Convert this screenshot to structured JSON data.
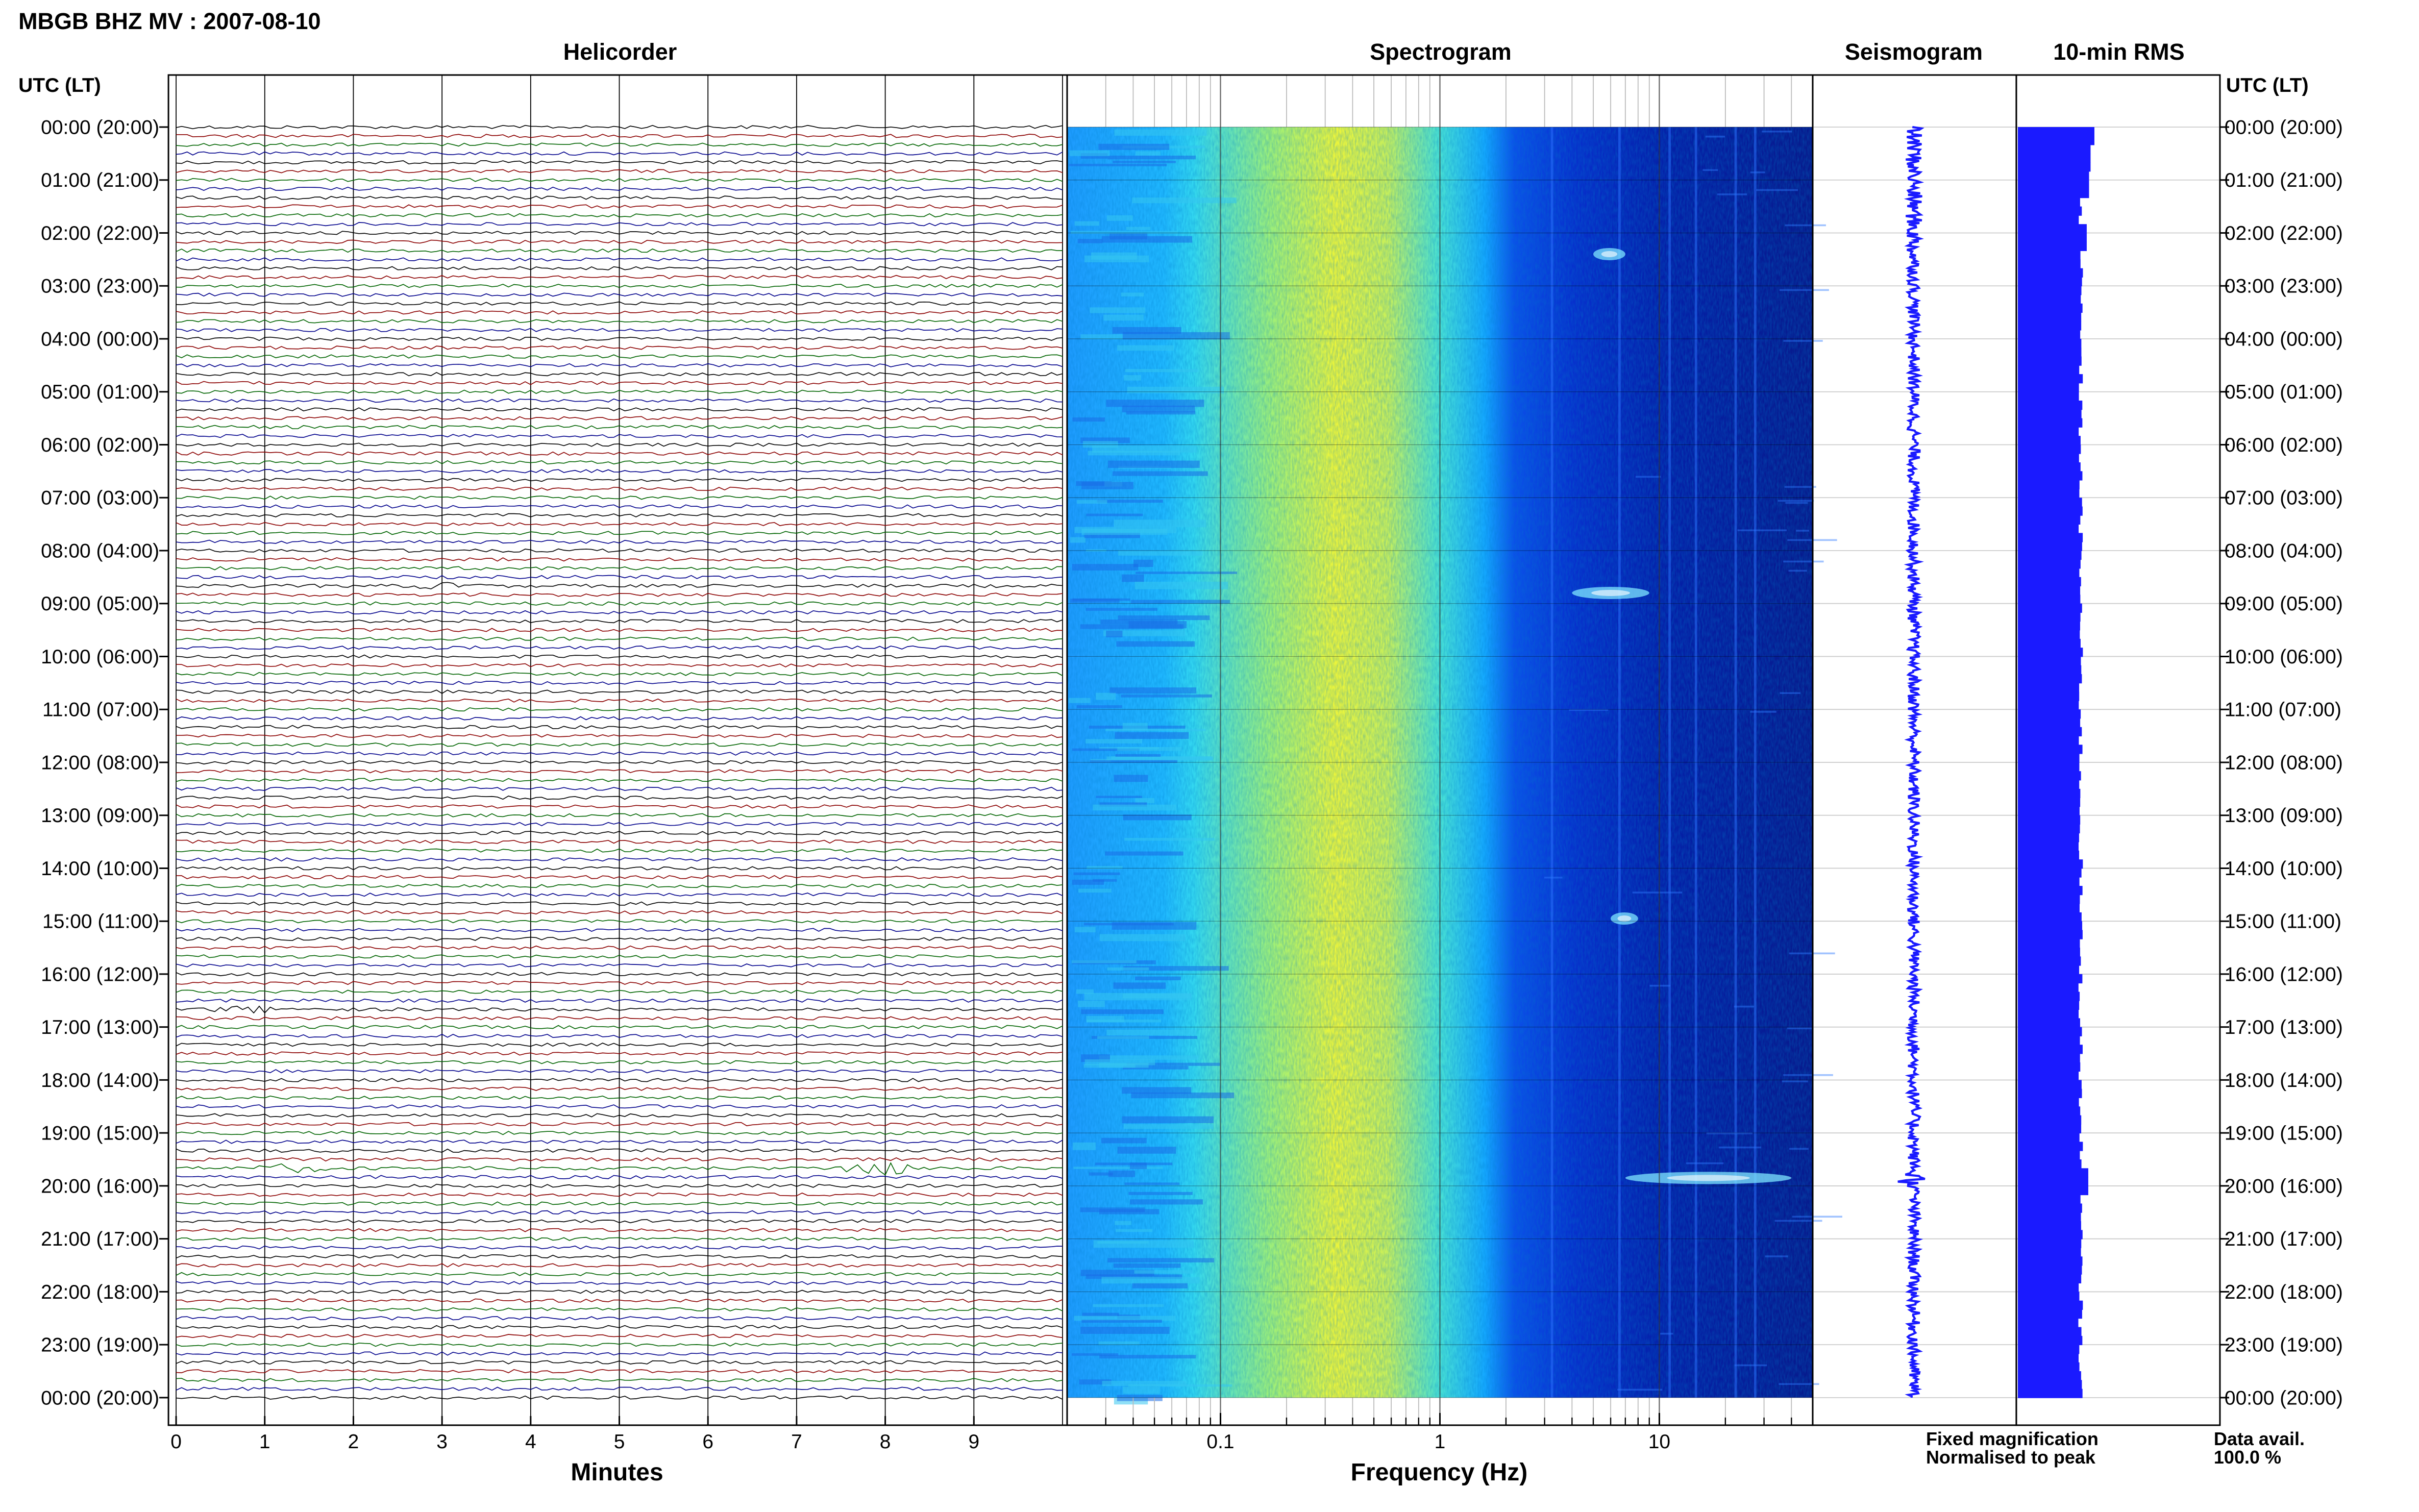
{
  "title": "MBGB BHZ MV : 2007-08-10",
  "panels": {
    "helicorder": "Helicorder",
    "spectrogram": "Spectrogram",
    "seismogram": "Seismogram",
    "rms": "10-min RMS"
  },
  "axis": {
    "utc_header": "UTC (LT)",
    "minutes_label": "Minutes",
    "frequency_label": "Frequency (Hz)"
  },
  "legend": {
    "fixed": "Fixed magnification",
    "normalised": "Normalised to peak",
    "fixed_color": "#1a1aff",
    "normalised_color": "#ff1a1a"
  },
  "data_avail": {
    "label": "Data avail.",
    "value": "100.0 %"
  },
  "colors": {
    "trace_cycle": [
      "#000000",
      "#8b0000",
      "#006400",
      "#00008b"
    ],
    "seismogram": "#1a1aff",
    "rms": "#1a1aff"
  },
  "chart_data": [
    {
      "type": "line",
      "name": "helicorder",
      "title": "Helicorder",
      "xlabel": "Minutes",
      "xlim": [
        0,
        10
      ],
      "x_ticks": [
        "0",
        "1",
        "2",
        "3",
        "4",
        "5",
        "6",
        "7",
        "8",
        "9"
      ],
      "y_ticks": [
        "00:00 (20:00)",
        "01:00 (21:00)",
        "02:00 (22:00)",
        "03:00 (23:00)",
        "04:00 (00:00)",
        "05:00 (01:00)",
        "06:00 (02:00)",
        "07:00 (03:00)",
        "08:00 (04:00)",
        "09:00 (05:00)",
        "10:00 (06:00)",
        "11:00 (07:00)",
        "12:00 (08:00)",
        "13:00 (09:00)",
        "14:00 (10:00)",
        "15:00 (11:00)",
        "16:00 (12:00)",
        "17:00 (13:00)",
        "18:00 (14:00)",
        "19:00 (15:00)",
        "20:00 (16:00)",
        "21:00 (17:00)",
        "22:00 (18:00)",
        "23:00 (19:00)",
        "00:00 (20:00)"
      ],
      "lines_per_hour": 6,
      "events": [
        {
          "utc": "19:40",
          "minute": 7.9,
          "amplitude": 6
        },
        {
          "utc": "19:40",
          "minute": 1.3,
          "amplitude": 2.5
        },
        {
          "utc": "16:40",
          "minute": 0.8,
          "amplitude": 2
        },
        {
          "utc": "08:40",
          "minute": 3.0,
          "amplitude": 1.5
        }
      ]
    },
    {
      "type": "heatmap",
      "name": "spectrogram",
      "title": "Spectrogram",
      "xlabel": "Frequency (Hz)",
      "x_scale": "log",
      "xlim": [
        0.02,
        50
      ],
      "x_ticks": [
        "0.1",
        "1",
        "10"
      ],
      "colormap": [
        "#00007f",
        "#0000ff",
        "#00ffff",
        "#ffff00"
      ],
      "features": [
        {
          "utc_hour": 8.8,
          "f_low": 4,
          "f_high": 9
        },
        {
          "utc_hour": 14.95,
          "f_low": 6,
          "f_high": 8
        },
        {
          "utc_hour": 19.85,
          "f_low": 7,
          "f_high": 40
        },
        {
          "utc_hour": 2.4,
          "f_low": 5,
          "f_high": 7
        }
      ]
    },
    {
      "type": "line",
      "name": "seismogram",
      "title": "Seismogram",
      "event_utc_hour": 19.85
    },
    {
      "type": "bar",
      "name": "rms",
      "title": "10-min RMS",
      "bin_minutes": 10,
      "baseline": 0.82,
      "elevated": [
        {
          "utc_hour": 0.0,
          "value": 1.0
        },
        {
          "utc_hour": 0.5,
          "value": 0.95
        },
        {
          "utc_hour": 1.0,
          "value": 0.93
        },
        {
          "utc_hour": 2.0,
          "value": 0.9
        },
        {
          "utc_hour": 19.8,
          "value": 0.92
        }
      ]
    }
  ]
}
